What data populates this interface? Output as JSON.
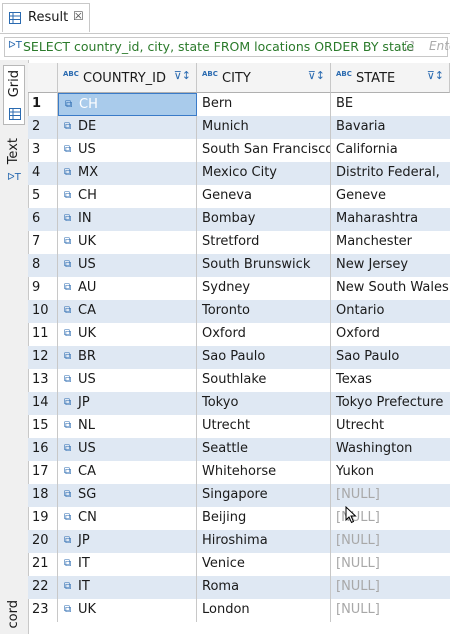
{
  "tab": {
    "label": "Result",
    "icon": "table-icon",
    "close": "☒"
  },
  "filter": {
    "query": "SELECT country_id, city, state FROM locations ORDER BY state",
    "placeholder": "Ente"
  },
  "sidebar": {
    "grid_label": "Grid",
    "text_label": "Text",
    "record_label": "cord"
  },
  "columns": [
    {
      "name": "COUNTRY_ID",
      "type_badge": "ABC"
    },
    {
      "name": "CITY",
      "type_badge": "ABC"
    },
    {
      "name": "STATE",
      "type_badge": "ABC"
    }
  ],
  "rows": [
    {
      "num": "1",
      "country_id": "CH",
      "city": "Bern",
      "state": "BE"
    },
    {
      "num": "2",
      "country_id": "DE",
      "city": "Munich",
      "state": "Bavaria"
    },
    {
      "num": "3",
      "country_id": "US",
      "city": "South San Francisco",
      "state": "California"
    },
    {
      "num": "4",
      "country_id": "MX",
      "city": "Mexico City",
      "state": "Distrito Federal,"
    },
    {
      "num": "5",
      "country_id": "CH",
      "city": "Geneva",
      "state": "Geneve"
    },
    {
      "num": "6",
      "country_id": "IN",
      "city": "Bombay",
      "state": "Maharashtra"
    },
    {
      "num": "7",
      "country_id": "UK",
      "city": "Stretford",
      "state": "Manchester"
    },
    {
      "num": "8",
      "country_id": "US",
      "city": "South Brunswick",
      "state": "New Jersey"
    },
    {
      "num": "9",
      "country_id": "AU",
      "city": "Sydney",
      "state": "New South Wales"
    },
    {
      "num": "10",
      "country_id": "CA",
      "city": "Toronto",
      "state": "Ontario"
    },
    {
      "num": "11",
      "country_id": "UK",
      "city": "Oxford",
      "state": "Oxford"
    },
    {
      "num": "12",
      "country_id": "BR",
      "city": "Sao Paulo",
      "state": "Sao Paulo"
    },
    {
      "num": "13",
      "country_id": "US",
      "city": "Southlake",
      "state": "Texas"
    },
    {
      "num": "14",
      "country_id": "JP",
      "city": "Tokyo",
      "state": "Tokyo Prefecture"
    },
    {
      "num": "15",
      "country_id": "NL",
      "city": "Utrecht",
      "state": "Utrecht"
    },
    {
      "num": "16",
      "country_id": "US",
      "city": "Seattle",
      "state": "Washington"
    },
    {
      "num": "17",
      "country_id": "CA",
      "city": "Whitehorse",
      "state": "Yukon"
    },
    {
      "num": "18",
      "country_id": "SG",
      "city": "Singapore",
      "state": "[NULL]"
    },
    {
      "num": "19",
      "country_id": "CN",
      "city": "Beijing",
      "state": "[NULL]"
    },
    {
      "num": "20",
      "country_id": "JP",
      "city": "Hiroshima",
      "state": "[NULL]"
    },
    {
      "num": "21",
      "country_id": "IT",
      "city": "Venice",
      "state": "[NULL]"
    },
    {
      "num": "22",
      "country_id": "IT",
      "city": "Roma",
      "state": "[NULL]"
    },
    {
      "num": "23",
      "country_id": "UK",
      "city": "London",
      "state": "[NULL]"
    }
  ],
  "selected_row": "1",
  "colors": {
    "alt_row": "#dfe8f3",
    "selected": "#a9cbeb",
    "query": "#2a7a2a",
    "null": "#a8a8a8"
  }
}
